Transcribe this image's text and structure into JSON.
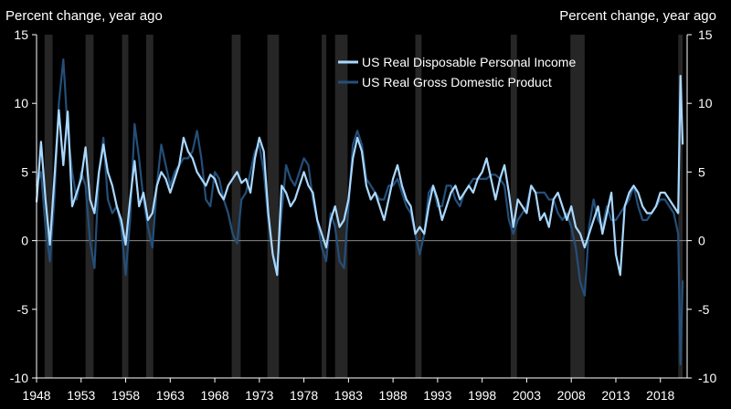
{
  "chart_data": {
    "type": "line",
    "ylabel_left": "Percent change, year ago",
    "ylabel_right": "Percent change, year ago",
    "ylim": [
      -10,
      15
    ],
    "xlim": [
      1948,
      2021
    ],
    "x_ticks": [
      1948,
      1953,
      1958,
      1963,
      1968,
      1973,
      1978,
      1983,
      1988,
      1993,
      1998,
      2003,
      2008,
      2013,
      2018
    ],
    "y_ticks": [
      -10,
      -5,
      0,
      5,
      10,
      15
    ],
    "legend_position": "top-right",
    "recessions": [
      [
        1948.9,
        1949.8
      ],
      [
        1953.5,
        1954.4
      ],
      [
        1957.6,
        1958.3
      ],
      [
        1960.3,
        1961.1
      ],
      [
        1969.9,
        1970.9
      ],
      [
        1973.9,
        1975.2
      ],
      [
        1980.0,
        1980.5
      ],
      [
        1981.5,
        1982.9
      ],
      [
        1990.5,
        1991.2
      ],
      [
        2001.2,
        2001.9
      ],
      [
        2007.9,
        2009.5
      ],
      [
        2020.0,
        2020.5
      ]
    ],
    "series": [
      {
        "name": "US Real Disposable Personal Income",
        "color": "#a9d8ff",
        "points": [
          [
            1948,
            2.8
          ],
          [
            1948.5,
            7.2
          ],
          [
            1949,
            3.0
          ],
          [
            1949.5,
            -0.3
          ],
          [
            1950,
            4.5
          ],
          [
            1950.5,
            9.5
          ],
          [
            1951,
            5.5
          ],
          [
            1951.5,
            9.4
          ],
          [
            1952,
            2.5
          ],
          [
            1952.5,
            3.5
          ],
          [
            1953,
            4.5
          ],
          [
            1953.5,
            6.8
          ],
          [
            1954,
            3.0
          ],
          [
            1954.5,
            2.0
          ],
          [
            1955,
            5.0
          ],
          [
            1955.5,
            7.0
          ],
          [
            1956,
            5.0
          ],
          [
            1956.5,
            4.0
          ],
          [
            1957,
            2.5
          ],
          [
            1957.5,
            1.5
          ],
          [
            1958,
            -0.3
          ],
          [
            1958.5,
            3.0
          ],
          [
            1959,
            5.8
          ],
          [
            1959.5,
            2.5
          ],
          [
            1960,
            3.5
          ],
          [
            1960.5,
            1.5
          ],
          [
            1961,
            2.0
          ],
          [
            1961.5,
            4.0
          ],
          [
            1962,
            5.0
          ],
          [
            1962.5,
            4.5
          ],
          [
            1963,
            3.5
          ],
          [
            1963.5,
            4.5
          ],
          [
            1964,
            5.5
          ],
          [
            1964.5,
            7.5
          ],
          [
            1965,
            6.5
          ],
          [
            1965.5,
            6.0
          ],
          [
            1966,
            5.0
          ],
          [
            1966.5,
            4.5
          ],
          [
            1967,
            4.0
          ],
          [
            1967.5,
            4.8
          ],
          [
            1968,
            4.5
          ],
          [
            1968.5,
            3.5
          ],
          [
            1969,
            3.0
          ],
          [
            1969.5,
            4.0
          ],
          [
            1970,
            4.5
          ],
          [
            1970.5,
            5.0
          ],
          [
            1971,
            4.2
          ],
          [
            1971.5,
            4.5
          ],
          [
            1972,
            3.5
          ],
          [
            1972.5,
            6.0
          ],
          [
            1973,
            7.5
          ],
          [
            1973.5,
            6.5
          ],
          [
            1974,
            2.0
          ],
          [
            1974.5,
            -1.0
          ],
          [
            1975,
            -2.5
          ],
          [
            1975.5,
            4.0
          ],
          [
            1976,
            3.5
          ],
          [
            1976.5,
            2.5
          ],
          [
            1977,
            3.0
          ],
          [
            1977.5,
            4.0
          ],
          [
            1978,
            5.0
          ],
          [
            1978.5,
            4.0
          ],
          [
            1979,
            3.5
          ],
          [
            1979.5,
            1.5
          ],
          [
            1980,
            0.5
          ],
          [
            1980.5,
            -0.5
          ],
          [
            1981,
            1.5
          ],
          [
            1981.5,
            2.5
          ],
          [
            1982,
            1.0
          ],
          [
            1982.5,
            1.5
          ],
          [
            1983,
            3.0
          ],
          [
            1983.5,
            6.0
          ],
          [
            1984,
            7.5
          ],
          [
            1984.5,
            6.5
          ],
          [
            1985,
            4.0
          ],
          [
            1985.5,
            3.0
          ],
          [
            1986,
            3.5
          ],
          [
            1986.5,
            2.5
          ],
          [
            1987,
            1.5
          ],
          [
            1987.5,
            3.0
          ],
          [
            1988,
            4.5
          ],
          [
            1988.5,
            5.5
          ],
          [
            1989,
            4.0
          ],
          [
            1989.5,
            3.0
          ],
          [
            1990,
            2.5
          ],
          [
            1990.5,
            0.5
          ],
          [
            1991,
            1.0
          ],
          [
            1991.5,
            0.5
          ],
          [
            1992,
            2.5
          ],
          [
            1992.5,
            4.0
          ],
          [
            1993,
            3.0
          ],
          [
            1993.5,
            1.5
          ],
          [
            1994,
            2.5
          ],
          [
            1994.5,
            3.5
          ],
          [
            1995,
            4.0
          ],
          [
            1995.5,
            3.0
          ],
          [
            1996,
            3.5
          ],
          [
            1996.5,
            4.0
          ],
          [
            1997,
            3.5
          ],
          [
            1997.5,
            4.5
          ],
          [
            1998,
            5.0
          ],
          [
            1998.5,
            6.0
          ],
          [
            1999,
            4.5
          ],
          [
            1999.5,
            3.0
          ],
          [
            2000,
            4.5
          ],
          [
            2000.5,
            5.5
          ],
          [
            2001,
            3.5
          ],
          [
            2001.5,
            1.0
          ],
          [
            2002,
            3.0
          ],
          [
            2002.5,
            2.5
          ],
          [
            2003,
            2.0
          ],
          [
            2003.5,
            4.0
          ],
          [
            2004,
            3.5
          ],
          [
            2004.5,
            1.5
          ],
          [
            2005,
            2.0
          ],
          [
            2005.5,
            1.0
          ],
          [
            2006,
            3.0
          ],
          [
            2006.5,
            3.5
          ],
          [
            2007,
            2.5
          ],
          [
            2007.5,
            1.5
          ],
          [
            2008,
            2.5
          ],
          [
            2008.5,
            1.0
          ],
          [
            2009,
            0.5
          ],
          [
            2009.5,
            -0.5
          ],
          [
            2010,
            0.5
          ],
          [
            2010.5,
            1.5
          ],
          [
            2011,
            2.5
          ],
          [
            2011.5,
            0.5
          ],
          [
            2012,
            2.0
          ],
          [
            2012.5,
            3.5
          ],
          [
            2013,
            -1.0
          ],
          [
            2013.5,
            -2.5
          ],
          [
            2014,
            2.5
          ],
          [
            2014.5,
            3.5
          ],
          [
            2015,
            4.0
          ],
          [
            2015.5,
            3.5
          ],
          [
            2016,
            2.5
          ],
          [
            2016.5,
            2.0
          ],
          [
            2017,
            2.0
          ],
          [
            2017.5,
            2.5
          ],
          [
            2018,
            3.5
          ],
          [
            2018.5,
            3.5
          ],
          [
            2019,
            3.0
          ],
          [
            2019.5,
            2.5
          ],
          [
            2020,
            2.0
          ],
          [
            2020.25,
            12.0
          ],
          [
            2020.5,
            7.0
          ]
        ]
      },
      {
        "name": "US Real Gross Domestic Product",
        "color": "#244f79",
        "points": [
          [
            1948,
            4.0
          ],
          [
            1948.5,
            5.0
          ],
          [
            1949,
            1.0
          ],
          [
            1949.5,
            -1.5
          ],
          [
            1950,
            3.0
          ],
          [
            1950.5,
            10.0
          ],
          [
            1951,
            13.2
          ],
          [
            1951.5,
            8.0
          ],
          [
            1952,
            5.0
          ],
          [
            1952.5,
            3.0
          ],
          [
            1953,
            5.0
          ],
          [
            1953.5,
            4.0
          ],
          [
            1954,
            0.0
          ],
          [
            1954.5,
            -2.0
          ],
          [
            1955,
            5.0
          ],
          [
            1955.5,
            7.5
          ],
          [
            1956,
            3.0
          ],
          [
            1956.5,
            2.0
          ],
          [
            1957,
            2.5
          ],
          [
            1957.5,
            1.0
          ],
          [
            1958,
            -2.5
          ],
          [
            1958.5,
            1.5
          ],
          [
            1959,
            8.5
          ],
          [
            1959.5,
            6.0
          ],
          [
            1960,
            3.0
          ],
          [
            1960.5,
            1.0
          ],
          [
            1961,
            -0.5
          ],
          [
            1961.5,
            4.0
          ],
          [
            1962,
            7.0
          ],
          [
            1962.5,
            5.5
          ],
          [
            1963,
            4.0
          ],
          [
            1963.5,
            5.0
          ],
          [
            1964,
            5.5
          ],
          [
            1964.5,
            6.0
          ],
          [
            1965,
            6.0
          ],
          [
            1965.5,
            6.5
          ],
          [
            1966,
            8.0
          ],
          [
            1966.5,
            6.0
          ],
          [
            1967,
            3.0
          ],
          [
            1967.5,
            2.5
          ],
          [
            1968,
            5.0
          ],
          [
            1968.5,
            4.5
          ],
          [
            1969,
            3.0
          ],
          [
            1969.5,
            2.0
          ],
          [
            1970,
            0.5
          ],
          [
            1970.5,
            -0.2
          ],
          [
            1971,
            3.0
          ],
          [
            1971.5,
            3.5
          ],
          [
            1972,
            5.0
          ],
          [
            1972.5,
            6.5
          ],
          [
            1973,
            7.0
          ],
          [
            1973.5,
            5.0
          ],
          [
            1974,
            1.5
          ],
          [
            1974.5,
            -1.0
          ],
          [
            1975,
            -2.0
          ],
          [
            1975.5,
            2.0
          ],
          [
            1976,
            5.5
          ],
          [
            1976.5,
            4.5
          ],
          [
            1977,
            4.0
          ],
          [
            1977.5,
            5.0
          ],
          [
            1978,
            6.0
          ],
          [
            1978.5,
            5.5
          ],
          [
            1979,
            3.0
          ],
          [
            1979.5,
            1.5
          ],
          [
            1980,
            -0.5
          ],
          [
            1980.5,
            -1.5
          ],
          [
            1981,
            2.0
          ],
          [
            1981.5,
            1.0
          ],
          [
            1982,
            -1.5
          ],
          [
            1982.5,
            -2.0
          ],
          [
            1983,
            2.5
          ],
          [
            1983.5,
            7.0
          ],
          [
            1984,
            8.0
          ],
          [
            1984.5,
            7.0
          ],
          [
            1985,
            4.5
          ],
          [
            1985.5,
            4.0
          ],
          [
            1986,
            3.5
          ],
          [
            1986.5,
            3.0
          ],
          [
            1987,
            3.0
          ],
          [
            1987.5,
            4.0
          ],
          [
            1988,
            4.0
          ],
          [
            1988.5,
            4.5
          ],
          [
            1989,
            3.5
          ],
          [
            1989.5,
            2.5
          ],
          [
            1990,
            2.0
          ],
          [
            1990.5,
            0.5
          ],
          [
            1991,
            -1.0
          ],
          [
            1991.5,
            0.5
          ],
          [
            1992,
            3.5
          ],
          [
            1992.5,
            4.0
          ],
          [
            1993,
            2.5
          ],
          [
            1993.5,
            2.5
          ],
          [
            1994,
            4.0
          ],
          [
            1994.5,
            4.0
          ],
          [
            1995,
            3.0
          ],
          [
            1995.5,
            2.5
          ],
          [
            1996,
            3.5
          ],
          [
            1996.5,
            4.0
          ],
          [
            1997,
            4.5
          ],
          [
            1997.5,
            4.5
          ],
          [
            1998,
            4.5
          ],
          [
            1998.5,
            4.5
          ],
          [
            1999,
            4.8
          ],
          [
            1999.5,
            4.8
          ],
          [
            2000,
            4.5
          ],
          [
            2000.5,
            4.0
          ],
          [
            2001,
            1.5
          ],
          [
            2001.5,
            0.5
          ],
          [
            2002,
            1.5
          ],
          [
            2002.5,
            2.0
          ],
          [
            2003,
            2.5
          ],
          [
            2003.5,
            4.0
          ],
          [
            2004,
            3.5
          ],
          [
            2004.5,
            3.5
          ],
          [
            2005,
            3.5
          ],
          [
            2005.5,
            3.0
          ],
          [
            2006,
            3.0
          ],
          [
            2006.5,
            2.0
          ],
          [
            2007,
            1.5
          ],
          [
            2007.5,
            2.0
          ],
          [
            2008,
            1.0
          ],
          [
            2008.5,
            -0.5
          ],
          [
            2009,
            -3.0
          ],
          [
            2009.5,
            -4.0
          ],
          [
            2010,
            1.0
          ],
          [
            2010.5,
            3.0
          ],
          [
            2011,
            1.5
          ],
          [
            2011.5,
            1.0
          ],
          [
            2012,
            2.5
          ],
          [
            2012.5,
            1.5
          ],
          [
            2013,
            1.5
          ],
          [
            2013.5,
            2.0
          ],
          [
            2014,
            2.5
          ],
          [
            2014.5,
            3.0
          ],
          [
            2015,
            4.0
          ],
          [
            2015.5,
            2.5
          ],
          [
            2016,
            1.5
          ],
          [
            2016.5,
            1.5
          ],
          [
            2017,
            2.0
          ],
          [
            2017.5,
            2.5
          ],
          [
            2018,
            3.0
          ],
          [
            2018.5,
            3.0
          ],
          [
            2019,
            2.5
          ],
          [
            2019.5,
            2.0
          ],
          [
            2020,
            0.5
          ],
          [
            2020.25,
            -9.0
          ],
          [
            2020.5,
            -2.9
          ]
        ]
      }
    ]
  }
}
